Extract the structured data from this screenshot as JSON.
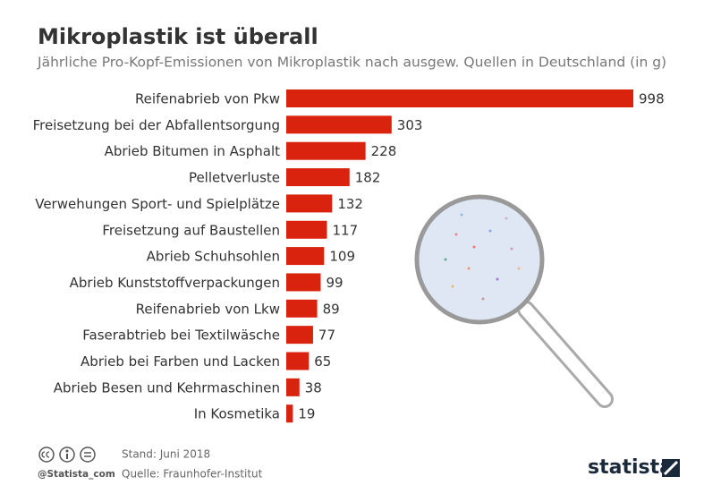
{
  "chart_data": {
    "type": "bar",
    "orientation": "horizontal",
    "title": "Mikroplastik ist überall",
    "subtitle": "Jährliche Pro-Kopf-Emissionen von Mikroplastik nach ausgew. Quellen in Deutschland (in g)",
    "categories": [
      "Reifenabrieb von Pkw",
      "Freisetzung bei der Abfallentsorgung",
      "Abrieb Bitumen in Asphalt",
      "Pelletverluste",
      "Verwehungen Sport- und Spielplätze",
      "Freisetzung auf Baustellen",
      "Abrieb Schuhsohlen",
      "Abrieb Kunststoffverpackungen",
      "Reifenabrieb von Lkw",
      "Faserabtrieb bei Textilwäsche",
      "Abrieb bei Farben und Lacken",
      "Abrieb Besen und Kehrmaschinen",
      "In Kosmetika"
    ],
    "values": [
      998,
      303,
      228,
      182,
      132,
      117,
      109,
      99,
      89,
      77,
      65,
      38,
      19
    ],
    "color": "#d9230f"
  },
  "footer": {
    "handle": "@Statista_com",
    "date": "Stand: Juni 2018",
    "source": "Quelle: Fraunhofer-Institut",
    "brand": "statista"
  }
}
